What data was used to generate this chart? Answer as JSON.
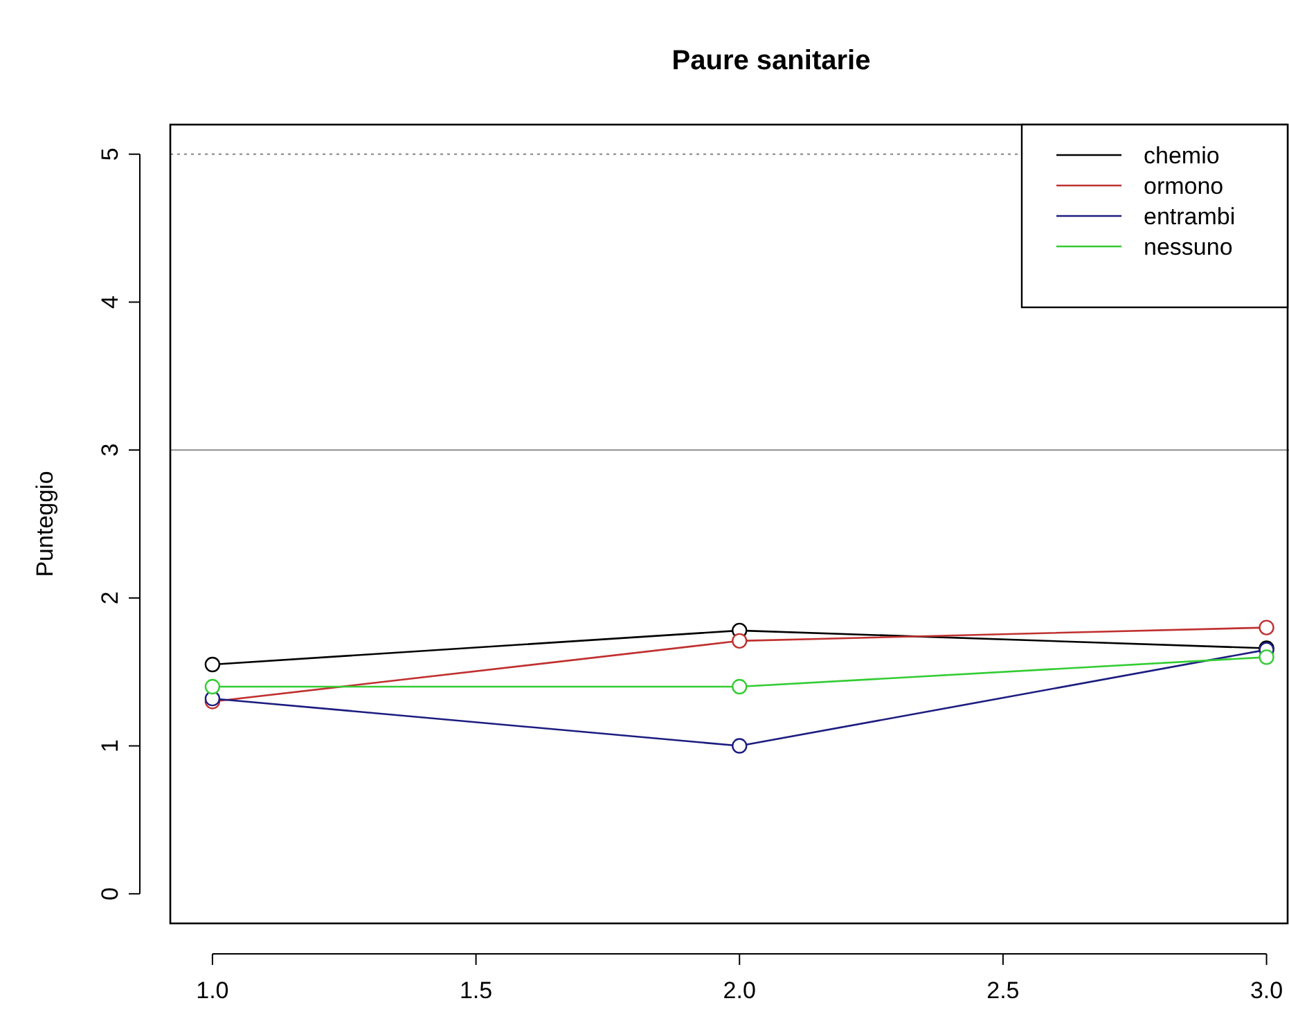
{
  "chart_data": {
    "type": "line",
    "title": "Paure sanitarie",
    "ylabel": "Punteggio",
    "x": [
      1,
      2,
      3
    ],
    "series": [
      {
        "name": "chemio",
        "color": "#000000",
        "values": [
          1.55,
          1.78,
          1.66
        ]
      },
      {
        "name": "ormono",
        "color": "#c03030",
        "values": [
          1.3,
          1.71,
          1.8
        ]
      },
      {
        "name": "entrambi",
        "color": "#1c1c80",
        "values": [
          1.32,
          1.0,
          1.65
        ]
      },
      {
        "name": "nessuno",
        "color": "#33cc33",
        "values": [
          1.4,
          1.4,
          1.6
        ]
      }
    ],
    "xlim": [
      0.92,
      3.04
    ],
    "ylim": [
      -0.2,
      5.2
    ],
    "xticks": [
      {
        "value": 1,
        "label": "1.0"
      },
      1.5,
      {
        "value": 2,
        "label": "2.0"
      },
      2.5,
      {
        "value": 3,
        "label": "3.0"
      }
    ],
    "yticks": [
      0,
      1,
      2,
      3,
      4,
      5
    ],
    "ref_lines": [
      {
        "axis": "y",
        "value": 5,
        "color": "#999999",
        "line_style": "dotted"
      },
      {
        "axis": "y",
        "value": 3,
        "color": "#999999",
        "line_style": "solid"
      }
    ],
    "legend": "top right",
    "marker": "circle",
    "line_style": "solid",
    "grid": false
  }
}
